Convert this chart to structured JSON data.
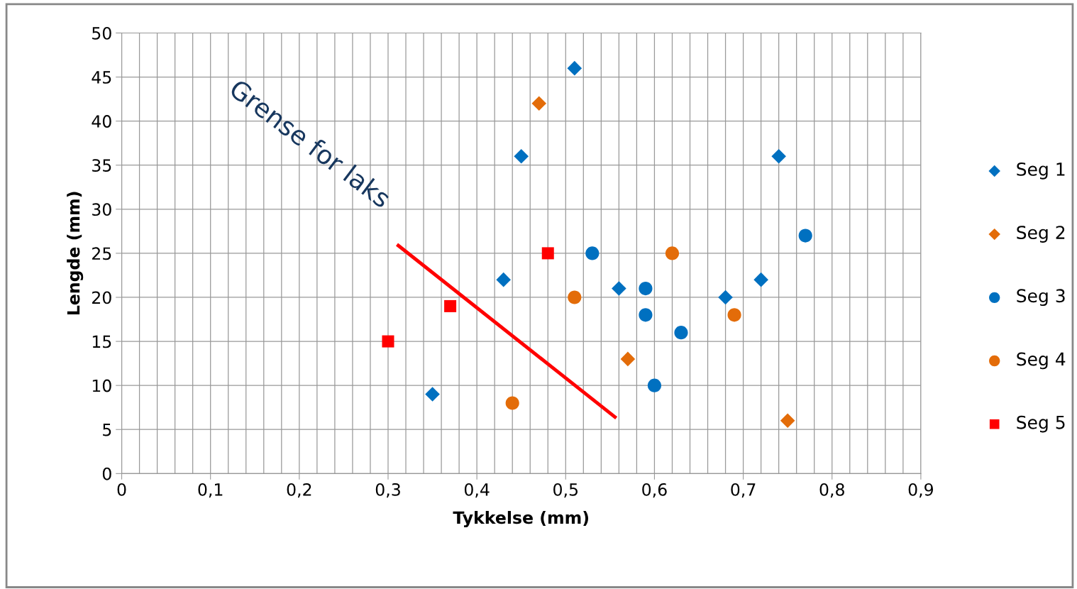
{
  "chart_data": {
    "type": "scatter",
    "xlabel": "Tykkelse (mm)",
    "ylabel": "Lengde (mm)",
    "xlim": [
      0,
      0.9
    ],
    "ylim": [
      0,
      50
    ],
    "xticks": [
      0,
      {
        "value": 0.1,
        "label": "0,1"
      },
      {
        "value": 0.2,
        "label": "0,2"
      },
      {
        "value": 0.3,
        "label": "0,3"
      },
      {
        "value": 0.4,
        "label": "0,4"
      },
      {
        "value": 0.5,
        "label": "0,5"
      },
      {
        "value": 0.6,
        "label": "0,6"
      },
      {
        "value": 0.7,
        "label": "0,7"
      },
      {
        "value": 0.8,
        "label": "0,8"
      },
      {
        "value": 0.9,
        "label": "0,9"
      }
    ],
    "yticks": [
      0,
      5,
      10,
      15,
      20,
      25,
      30,
      35,
      40,
      45,
      50
    ],
    "grid": true,
    "legend": "right",
    "annotations": [
      "Grense for laks"
    ],
    "series": [
      {
        "name": "Seg 1",
        "color": "#0070c0",
        "marker": "diamond",
        "x": [
          0.51,
          0.45,
          0.74,
          0.43,
          0.72,
          0.56,
          0.68,
          0.35
        ],
        "values": [
          46,
          36,
          36,
          22,
          22,
          21,
          20,
          9
        ]
      },
      {
        "name": "Seg 2",
        "color": "#e36c09",
        "marker": "diamond",
        "x": [
          0.47,
          0.57,
          0.75
        ],
        "values": [
          42,
          13,
          6
        ]
      },
      {
        "name": "Seg 3",
        "color": "#0070c0",
        "marker": "circle",
        "x": [
          0.53,
          0.59,
          0.59,
          0.63,
          0.6,
          0.77
        ],
        "values": [
          25,
          21,
          18,
          16,
          10,
          27
        ]
      },
      {
        "name": "Seg 4",
        "color": "#e36c09",
        "marker": "circle",
        "x": [
          0.62,
          0.51,
          0.69,
          0.44
        ],
        "values": [
          25,
          20,
          18,
          8
        ]
      },
      {
        "name": "Seg 5",
        "color": "#ff0000",
        "marker": "square",
        "x": [
          0.48,
          0.37,
          0.3
        ],
        "values": [
          25,
          19,
          15
        ]
      },
      {
        "type": "line",
        "color": "#ff0000",
        "marker": "none",
        "x": [
          0.31,
          0.557
        ],
        "values": [
          26,
          6.3
        ]
      }
    ]
  }
}
